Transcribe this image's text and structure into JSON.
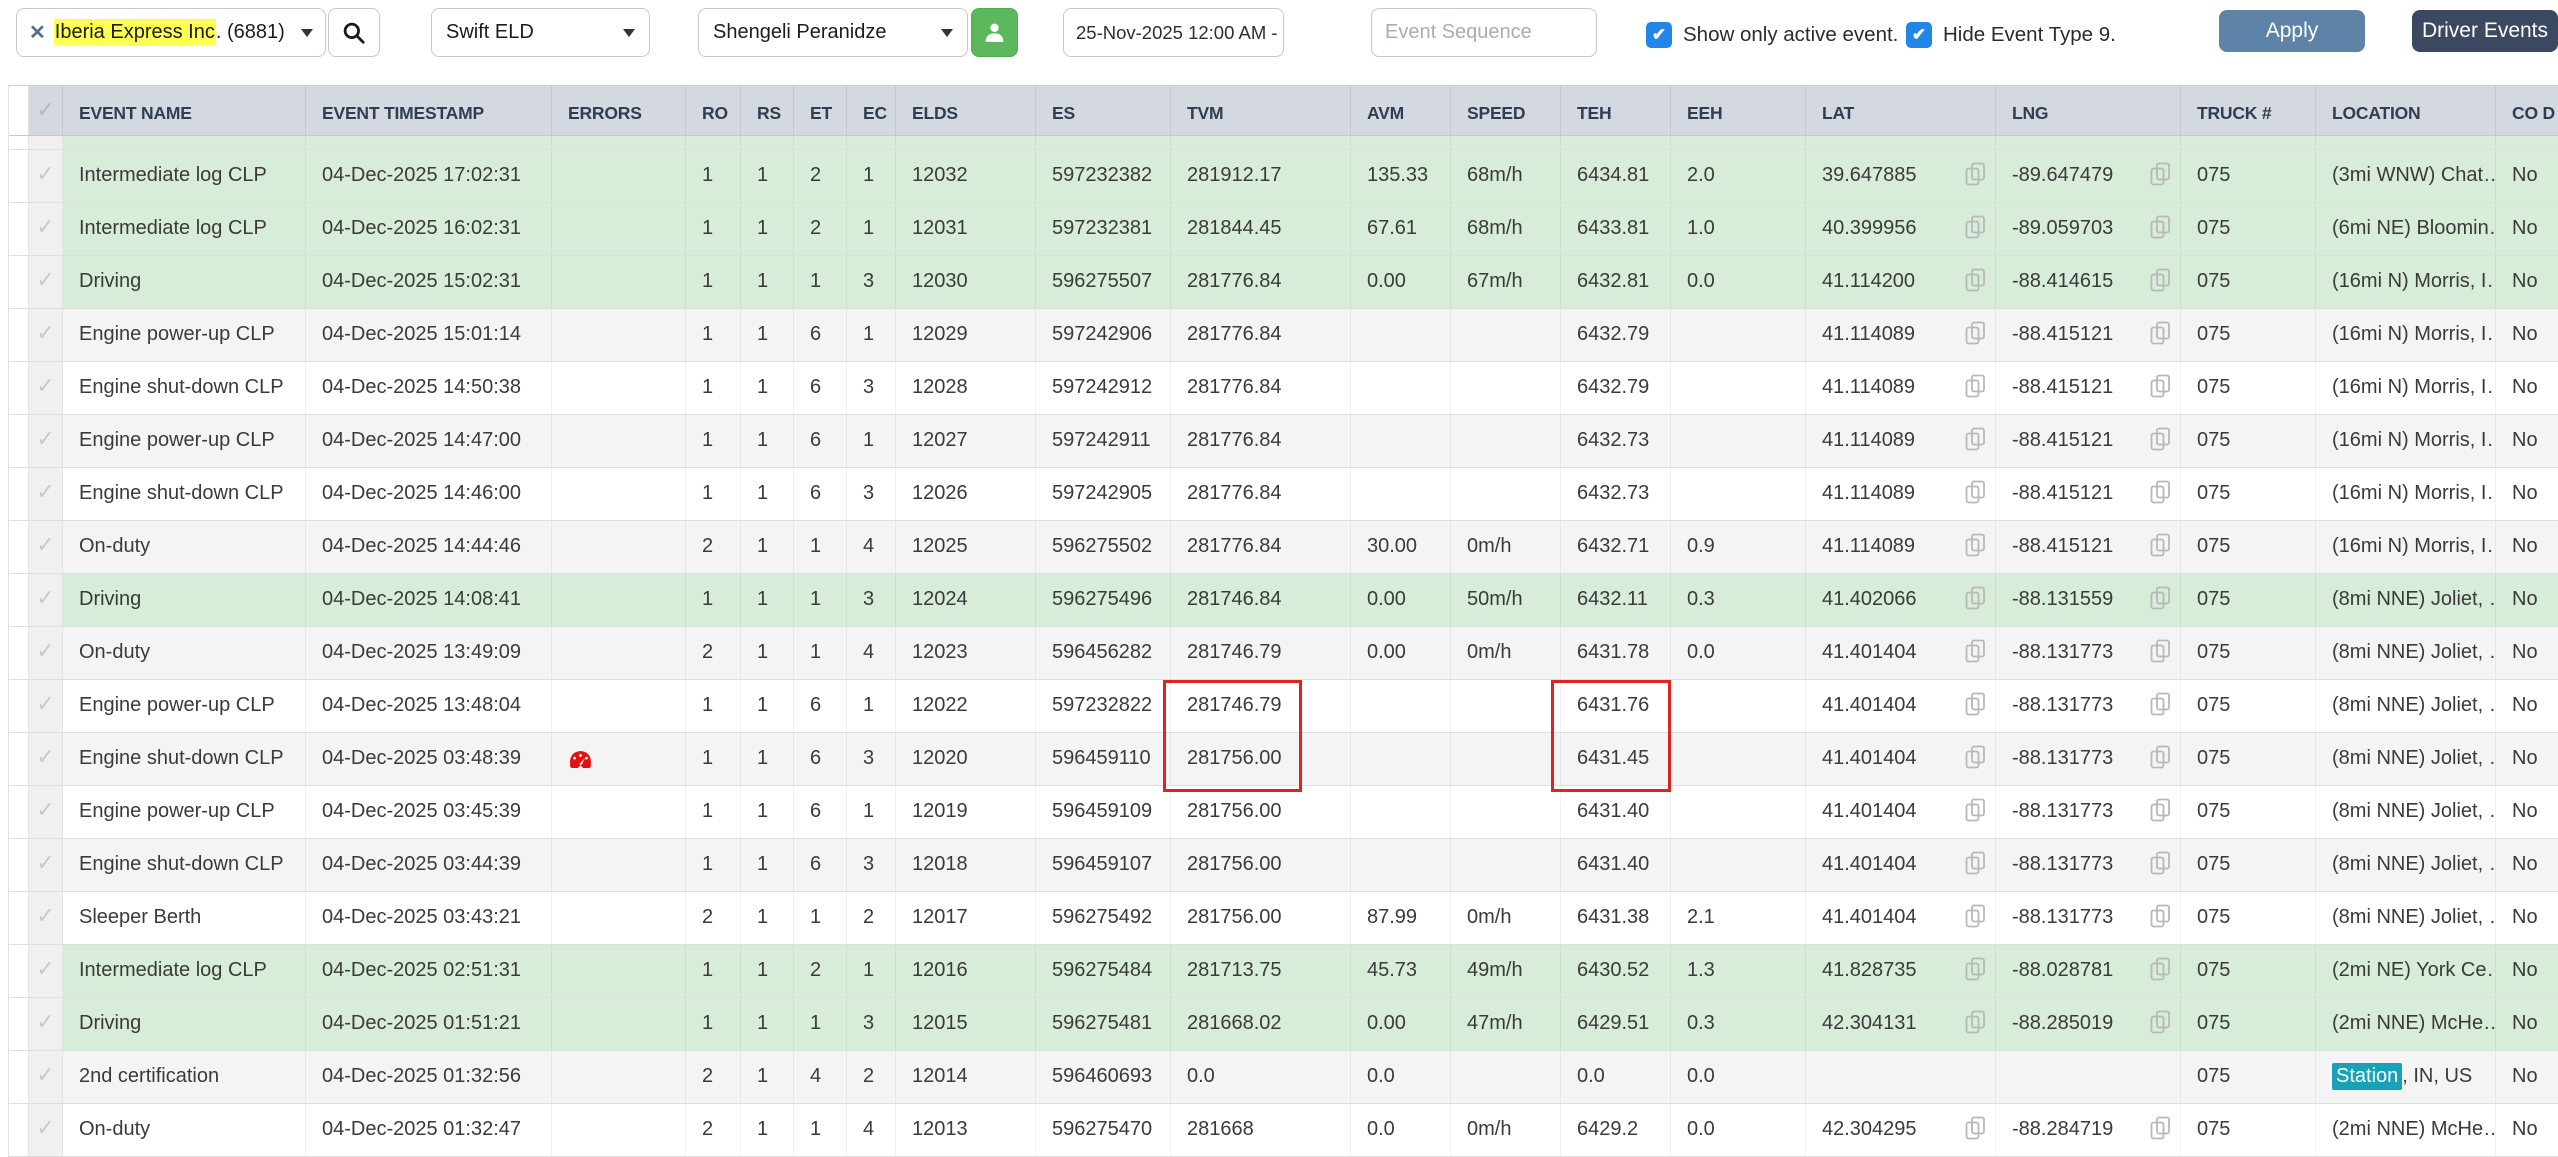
{
  "toolbar": {
    "company": {
      "clear_icon": "✕",
      "highlight": "Iberia Express Inc",
      "suffix": ". (6881)"
    },
    "eld_select": "Swift ELD",
    "driver_select": "Shengeli Peranidze",
    "date_range": "25-Nov-2025 12:00 AM - (",
    "event_sequence_placeholder": "Event Sequence",
    "show_only_active_label": "Show only active event.",
    "hide_event_type_label": "Hide Event Type 9.",
    "apply_label": "Apply",
    "driver_events_label": "Driver Events"
  },
  "colors": {
    "header_bg": "#d4d8e0",
    "green_row": "#d7ecd9",
    "gray_row": "#f4f4f4",
    "teal_highlight": "#17a2b8",
    "yellow_highlight": "#fdff54",
    "red_box": "#dd2420",
    "apply_bg": "#5e83a8",
    "driver_events_bg": "#3a4961",
    "user_btn_bg": "#5cb85c",
    "checkbox_blue": "#2186e8"
  },
  "table": {
    "columns": [
      "EVENT NAME",
      "EVENT TIMESTAMP",
      "ERRORS",
      "RO",
      "RS",
      "ET",
      "EC",
      "ELDS",
      "ES",
      "TVM",
      "AVM",
      "SPEED",
      "TEH",
      "EEH",
      "LAT",
      "LNG",
      "TRUCK #",
      "LOCATION",
      "CO D"
    ],
    "rows": [
      {
        "name": "Intermediate log CLP",
        "ts": "04-Dec-2025 17:02:31",
        "error": false,
        "ro": "1",
        "rs": "1",
        "et": "2",
        "ec": "1",
        "elds": "12032",
        "es": "597232382",
        "tvm": "281912.17",
        "avm": "135.33",
        "speed": "68m/h",
        "teh": "6434.81",
        "eeh": "2.0",
        "lat": "39.647885",
        "lng": "-89.647479",
        "truck": "075",
        "location": "(3mi WNW) Chat…",
        "cod": "No",
        "style": "green",
        "flagged": false
      },
      {
        "name": "Intermediate log CLP",
        "ts": "04-Dec-2025 16:02:31",
        "error": false,
        "ro": "1",
        "rs": "1",
        "et": "2",
        "ec": "1",
        "elds": "12031",
        "es": "597232381",
        "tvm": "281844.45",
        "avm": "67.61",
        "speed": "68m/h",
        "teh": "6433.81",
        "eeh": "1.0",
        "lat": "40.399956",
        "lng": "-89.059703",
        "truck": "075",
        "location": "(6mi NE) Bloomin…",
        "cod": "No",
        "style": "green",
        "flagged": false
      },
      {
        "name": "Driving",
        "ts": "04-Dec-2025 15:02:31",
        "error": false,
        "ro": "1",
        "rs": "1",
        "et": "1",
        "ec": "3",
        "elds": "12030",
        "es": "596275507",
        "tvm": "281776.84",
        "avm": "0.00",
        "speed": "67m/h",
        "teh": "6432.81",
        "eeh": "0.0",
        "lat": "41.114200",
        "lng": "-88.414615",
        "truck": "075",
        "location": "(16mi N) Morris, I…",
        "cod": "No",
        "style": "green",
        "flagged": false
      },
      {
        "name": "Engine power-up CLP",
        "ts": "04-Dec-2025 15:01:14",
        "error": false,
        "ro": "1",
        "rs": "1",
        "et": "6",
        "ec": "1",
        "elds": "12029",
        "es": "597242906",
        "tvm": "281776.84",
        "avm": "",
        "speed": "",
        "teh": "6432.79",
        "eeh": "",
        "lat": "41.114089",
        "lng": "-88.415121",
        "truck": "075",
        "location": "(16mi N) Morris, I…",
        "cod": "No",
        "style": "gray",
        "flagged": false
      },
      {
        "name": "Engine shut-down CLP",
        "ts": "04-Dec-2025 14:50:38",
        "error": false,
        "ro": "1",
        "rs": "1",
        "et": "6",
        "ec": "3",
        "elds": "12028",
        "es": "597242912",
        "tvm": "281776.84",
        "avm": "",
        "speed": "",
        "teh": "6432.79",
        "eeh": "",
        "lat": "41.114089",
        "lng": "-88.415121",
        "truck": "075",
        "location": "(16mi N) Morris, I…",
        "cod": "No",
        "style": "white",
        "flagged": false
      },
      {
        "name": "Engine power-up CLP",
        "ts": "04-Dec-2025 14:47:00",
        "error": false,
        "ro": "1",
        "rs": "1",
        "et": "6",
        "ec": "1",
        "elds": "12027",
        "es": "597242911",
        "tvm": "281776.84",
        "avm": "",
        "speed": "",
        "teh": "6432.73",
        "eeh": "",
        "lat": "41.114089",
        "lng": "-88.415121",
        "truck": "075",
        "location": "(16mi N) Morris, I…",
        "cod": "No",
        "style": "gray",
        "flagged": false
      },
      {
        "name": "Engine shut-down CLP",
        "ts": "04-Dec-2025 14:46:00",
        "error": false,
        "ro": "1",
        "rs": "1",
        "et": "6",
        "ec": "3",
        "elds": "12026",
        "es": "597242905",
        "tvm": "281776.84",
        "avm": "",
        "speed": "",
        "teh": "6432.73",
        "eeh": "",
        "lat": "41.114089",
        "lng": "-88.415121",
        "truck": "075",
        "location": "(16mi N) Morris, I…",
        "cod": "No",
        "style": "white",
        "flagged": false
      },
      {
        "name": "On-duty",
        "ts": "04-Dec-2025 14:44:46",
        "error": false,
        "ro": "2",
        "rs": "1",
        "et": "1",
        "ec": "4",
        "elds": "12025",
        "es": "596275502",
        "tvm": "281776.84",
        "avm": "30.00",
        "speed": "0m/h",
        "teh": "6432.71",
        "eeh": "0.9",
        "lat": "41.114089",
        "lng": "-88.415121",
        "truck": "075",
        "location": "(16mi N) Morris, I…",
        "cod": "No",
        "style": "gray",
        "flagged": false
      },
      {
        "name": "Driving",
        "ts": "04-Dec-2025 14:08:41",
        "error": false,
        "ro": "1",
        "rs": "1",
        "et": "1",
        "ec": "3",
        "elds": "12024",
        "es": "596275496",
        "tvm": "281746.84",
        "avm": "0.00",
        "speed": "50m/h",
        "teh": "6432.11",
        "eeh": "0.3",
        "lat": "41.402066",
        "lng": "-88.131559",
        "truck": "075",
        "location": "(8mi NNE) Joliet, …",
        "cod": "No",
        "style": "green",
        "flagged": false
      },
      {
        "name": "On-duty",
        "ts": "04-Dec-2025 13:49:09",
        "error": false,
        "ro": "2",
        "rs": "1",
        "et": "1",
        "ec": "4",
        "elds": "12023",
        "es": "596456282",
        "tvm": "281746.79",
        "avm": "0.00",
        "speed": "0m/h",
        "teh": "6431.78",
        "eeh": "0.0",
        "lat": "41.401404",
        "lng": "-88.131773",
        "truck": "075",
        "location": "(8mi NNE) Joliet, …",
        "cod": "No",
        "style": "gray",
        "flagged": false
      },
      {
        "name": "Engine power-up CLP",
        "ts": "04-Dec-2025 13:48:04",
        "error": false,
        "ro": "1",
        "rs": "1",
        "et": "6",
        "ec": "1",
        "elds": "12022",
        "es": "597232822",
        "tvm": "281746.79",
        "avm": "",
        "speed": "",
        "teh": "6431.76",
        "eeh": "",
        "lat": "41.401404",
        "lng": "-88.131773",
        "truck": "075",
        "location": "(8mi NNE) Joliet, …",
        "cod": "No",
        "style": "white",
        "flagged": true
      },
      {
        "name": "Engine shut-down CLP",
        "ts": "04-Dec-2025 03:48:39",
        "error": true,
        "ro": "1",
        "rs": "1",
        "et": "6",
        "ec": "3",
        "elds": "12020",
        "es": "596459110",
        "tvm": "281756.00",
        "avm": "",
        "speed": "",
        "teh": "6431.45",
        "eeh": "",
        "lat": "41.401404",
        "lng": "-88.131773",
        "truck": "075",
        "location": "(8mi NNE) Joliet, …",
        "cod": "No",
        "style": "gray",
        "flagged": true
      },
      {
        "name": "Engine power-up CLP",
        "ts": "04-Dec-2025 03:45:39",
        "error": false,
        "ro": "1",
        "rs": "1",
        "et": "6",
        "ec": "1",
        "elds": "12019",
        "es": "596459109",
        "tvm": "281756.00",
        "avm": "",
        "speed": "",
        "teh": "6431.40",
        "eeh": "",
        "lat": "41.401404",
        "lng": "-88.131773",
        "truck": "075",
        "location": "(8mi NNE) Joliet, …",
        "cod": "No",
        "style": "white",
        "flagged": false
      },
      {
        "name": "Engine shut-down CLP",
        "ts": "04-Dec-2025 03:44:39",
        "error": false,
        "ro": "1",
        "rs": "1",
        "et": "6",
        "ec": "3",
        "elds": "12018",
        "es": "596459107",
        "tvm": "281756.00",
        "avm": "",
        "speed": "",
        "teh": "6431.40",
        "eeh": "",
        "lat": "41.401404",
        "lng": "-88.131773",
        "truck": "075",
        "location": "(8mi NNE) Joliet, …",
        "cod": "No",
        "style": "gray",
        "flagged": false
      },
      {
        "name": "Sleeper Berth",
        "ts": "04-Dec-2025 03:43:21",
        "error": false,
        "ro": "2",
        "rs": "1",
        "et": "1",
        "ec": "2",
        "elds": "12017",
        "es": "596275492",
        "tvm": "281756.00",
        "avm": "87.99",
        "speed": "0m/h",
        "teh": "6431.38",
        "eeh": "2.1",
        "lat": "41.401404",
        "lng": "-88.131773",
        "truck": "075",
        "location": "(8mi NNE) Joliet, …",
        "cod": "No",
        "style": "white",
        "flagged": false
      },
      {
        "name": "Intermediate log CLP",
        "ts": "04-Dec-2025 02:51:31",
        "error": false,
        "ro": "1",
        "rs": "1",
        "et": "2",
        "ec": "1",
        "elds": "12016",
        "es": "596275484",
        "tvm": "281713.75",
        "avm": "45.73",
        "speed": "49m/h",
        "teh": "6430.52",
        "eeh": "1.3",
        "lat": "41.828735",
        "lng": "-88.028781",
        "truck": "075",
        "location": "(2mi NE) York Ce…",
        "cod": "No",
        "style": "green",
        "flagged": false
      },
      {
        "name": "Driving",
        "ts": "04-Dec-2025 01:51:21",
        "error": false,
        "ro": "1",
        "rs": "1",
        "et": "1",
        "ec": "3",
        "elds": "12015",
        "es": "596275481",
        "tvm": "281668.02",
        "avm": "0.00",
        "speed": "47m/h",
        "teh": "6429.51",
        "eeh": "0.3",
        "lat": "42.304131",
        "lng": "-88.285019",
        "truck": "075",
        "location": "(2mi NNE) McHe…",
        "cod": "No",
        "style": "green",
        "flagged": false
      },
      {
        "name": "2nd certification",
        "ts": "04-Dec-2025 01:32:56",
        "error": false,
        "ro": "2",
        "rs": "1",
        "et": "4",
        "ec": "2",
        "elds": "12014",
        "es": "596460693",
        "tvm": "0.0",
        "avm": "0.0",
        "speed": "",
        "teh": "0.0",
        "eeh": "0.0",
        "lat": "",
        "lng": "",
        "truck": "075",
        "location_hl": "Station",
        "location": ", IN, US",
        "cod": "No",
        "style": "gray",
        "flagged": false
      },
      {
        "name": "On-duty",
        "ts": "04-Dec-2025 01:32:47",
        "error": false,
        "ro": "2",
        "rs": "1",
        "et": "1",
        "ec": "4",
        "elds": "12013",
        "es": "596275470",
        "tvm": "281668",
        "avm": "0.0",
        "speed": "0m/h",
        "teh": "6429.2",
        "eeh": "0.0",
        "lat": "42.304295",
        "lng": "-88.284719",
        "truck": "075",
        "location": "(2mi NNE) McHe…",
        "cod": "No",
        "style": "white",
        "flagged": false
      }
    ]
  }
}
